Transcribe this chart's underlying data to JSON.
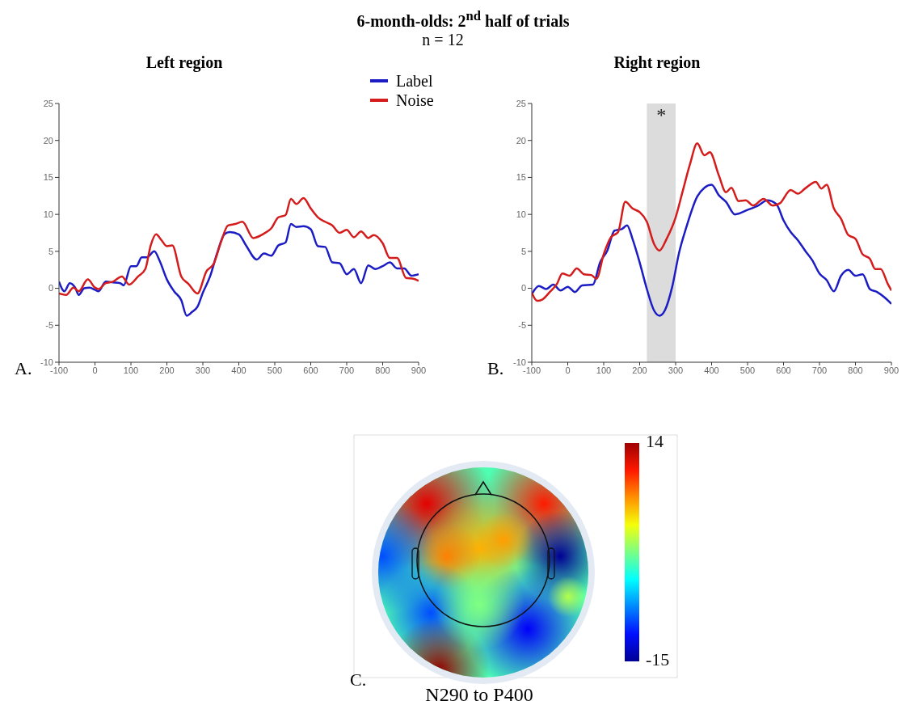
{
  "chart_data": [
    {
      "type": "line",
      "title": "6-month-olds: 2$^{nd}$ half of trials",
      "subtitle": "n = 12",
      "annotations": [
        "Left region",
        "A."
      ],
      "legend": "top right",
      "xlim": [
        -100,
        900
      ],
      "xticks": [
        -100,
        0,
        100,
        200,
        300,
        400,
        500,
        600,
        700,
        800,
        900
      ],
      "ylim": [
        -10,
        25
      ],
      "yticks": [
        -10,
        -5,
        0,
        5,
        10,
        15,
        20,
        25
      ],
      "series": [
        {
          "name": "Label",
          "color": "#1c1cc4",
          "x": [
            -100,
            -85,
            -70,
            -55,
            -45,
            -30,
            -15,
            0,
            10,
            30,
            50,
            70,
            80,
            100,
            115,
            130,
            145,
            165,
            180,
            200,
            220,
            240,
            255,
            270,
            285,
            300,
            320,
            340,
            360,
            375,
            400,
            420,
            450,
            470,
            490,
            510,
            530,
            545,
            560,
            580,
            600,
            620,
            640,
            660,
            680,
            700,
            720,
            740,
            760,
            780,
            800,
            820,
            840,
            860,
            880,
            900
          ],
          "values": [
            0.9,
            -0.4,
            0.7,
            0.1,
            -0.9,
            0,
            0.1,
            -0.2,
            -0.4,
            0.9,
            0.8,
            0.7,
            0.4,
            3.0,
            3.0,
            4.2,
            4.2,
            5.0,
            3.7,
            1.2,
            -0.4,
            -1.6,
            -3.7,
            -3.2,
            -2.5,
            -0.6,
            1.6,
            4.8,
            7.3,
            7.6,
            7.3,
            5.8,
            3.9,
            4.7,
            4.4,
            5.8,
            6.2,
            8.7,
            8.3,
            8.4,
            8.0,
            5.7,
            5.6,
            3.5,
            3.4,
            1.9,
            2.6,
            0.7,
            3.1,
            2.6,
            3.0,
            3.5,
            2.7,
            2.7,
            1.7,
            1.9
          ]
        },
        {
          "name": "Noise",
          "color": "#d41c1c",
          "x": [
            -100,
            -80,
            -60,
            -45,
            -20,
            0,
            10,
            30,
            50,
            75,
            95,
            120,
            140,
            155,
            170,
            185,
            200,
            215,
            240,
            260,
            285,
            310,
            330,
            350,
            370,
            390,
            410,
            440,
            470,
            490,
            510,
            530,
            545,
            560,
            580,
            600,
            620,
            640,
            660,
            680,
            700,
            720,
            740,
            760,
            775,
            800,
            820,
            840,
            865,
            885,
            900
          ],
          "values": [
            -0.7,
            -0.9,
            0.1,
            -0.4,
            1.2,
            0.1,
            -0.1,
            0.7,
            0.9,
            1.6,
            0.5,
            1.6,
            2.6,
            5.8,
            7.3,
            6.5,
            5.7,
            5.8,
            1.6,
            0.6,
            -0.7,
            2.3,
            3.3,
            6.2,
            8.5,
            8.7,
            9.0,
            6.8,
            7.4,
            8.1,
            9.6,
            9.9,
            12.1,
            11.4,
            12.2,
            10.8,
            9.6,
            9.0,
            8.5,
            7.5,
            7.9,
            6.9,
            7.7,
            6.8,
            7.2,
            6.1,
            4.1,
            4.1,
            1.4,
            1.3,
            1.0
          ]
        }
      ]
    },
    {
      "type": "line",
      "title": "Right region",
      "annotations": [
        "B."
      ],
      "xlim": [
        -100,
        900
      ],
      "xticks": [
        -100,
        0,
        100,
        200,
        300,
        400,
        500,
        600,
        700,
        800,
        900
      ],
      "ylim": [
        -10,
        25
      ],
      "yticks": [
        -10,
        -5,
        0,
        5,
        10,
        15,
        20,
        25
      ],
      "bands": [
        {
          "axis": "x",
          "from": 220,
          "to": 300,
          "label": "*",
          "color": "#dcdcdc"
        }
      ],
      "series": [
        {
          "color": "#1c1cc4",
          "x": [
            -100,
            -80,
            -60,
            -40,
            -20,
            0,
            20,
            40,
            70,
            90,
            110,
            130,
            150,
            165,
            180,
            200,
            220,
            240,
            255,
            270,
            290,
            310,
            330,
            360,
            380,
            400,
            420,
            440,
            465,
            500,
            530,
            555,
            580,
            600,
            620,
            640,
            660,
            680,
            700,
            720,
            740,
            760,
            780,
            800,
            820,
            840,
            860,
            880,
            900
          ],
          "values": [
            -0.8,
            0.3,
            -0.1,
            0.5,
            -0.3,
            0.2,
            -0.5,
            0.4,
            0.5,
            3.5,
            5.1,
            7.8,
            8.0,
            8.5,
            6.7,
            3.5,
            -0.1,
            -3.0,
            -3.7,
            -3.0,
            0.1,
            4.9,
            8.3,
            12.4,
            13.6,
            14.0,
            12.6,
            11.7,
            10.0,
            10.6,
            11.2,
            11.9,
            11.4,
            9.2,
            7.6,
            6.5,
            5.1,
            3.8,
            2.0,
            1.1,
            -0.4,
            1.7,
            2.5,
            1.7,
            1.9,
            -0.1,
            -0.5,
            -1.2,
            -2.1
          ]
        },
        {
          "color": "#d41c1c",
          "x": [
            -100,
            -85,
            -70,
            -50,
            -30,
            -15,
            5,
            25,
            45,
            65,
            80,
            100,
            120,
            140,
            160,
            180,
            200,
            220,
            240,
            255,
            275,
            300,
            320,
            340,
            360,
            380,
            395,
            420,
            440,
            455,
            475,
            495,
            515,
            545,
            570,
            590,
            620,
            640,
            660,
            690,
            705,
            720,
            740,
            760,
            780,
            800,
            820,
            840,
            855,
            870,
            890,
            900
          ],
          "values": [
            -0.6,
            -1.7,
            -1.5,
            -0.5,
            0.6,
            2.0,
            1.7,
            2.7,
            1.9,
            1.8,
            1.3,
            4.6,
            6.9,
            7.6,
            11.7,
            10.8,
            10.3,
            9.0,
            6.0,
            5.1,
            6.7,
            9.6,
            13.2,
            16.8,
            19.6,
            18.0,
            18.4,
            15.3,
            13.0,
            13.6,
            11.8,
            11.9,
            11.2,
            12.1,
            11.2,
            11.5,
            13.3,
            12.8,
            13.5,
            14.4,
            13.5,
            14.0,
            10.8,
            9.4,
            7.2,
            6.7,
            4.6,
            4.0,
            2.6,
            2.6,
            0.6,
            -0.3
          ]
        }
      ]
    },
    {
      "type": "other",
      "title": "N290 to P400",
      "annotations": [
        "C.",
        "14",
        "-15"
      ]
    }
  ]
}
